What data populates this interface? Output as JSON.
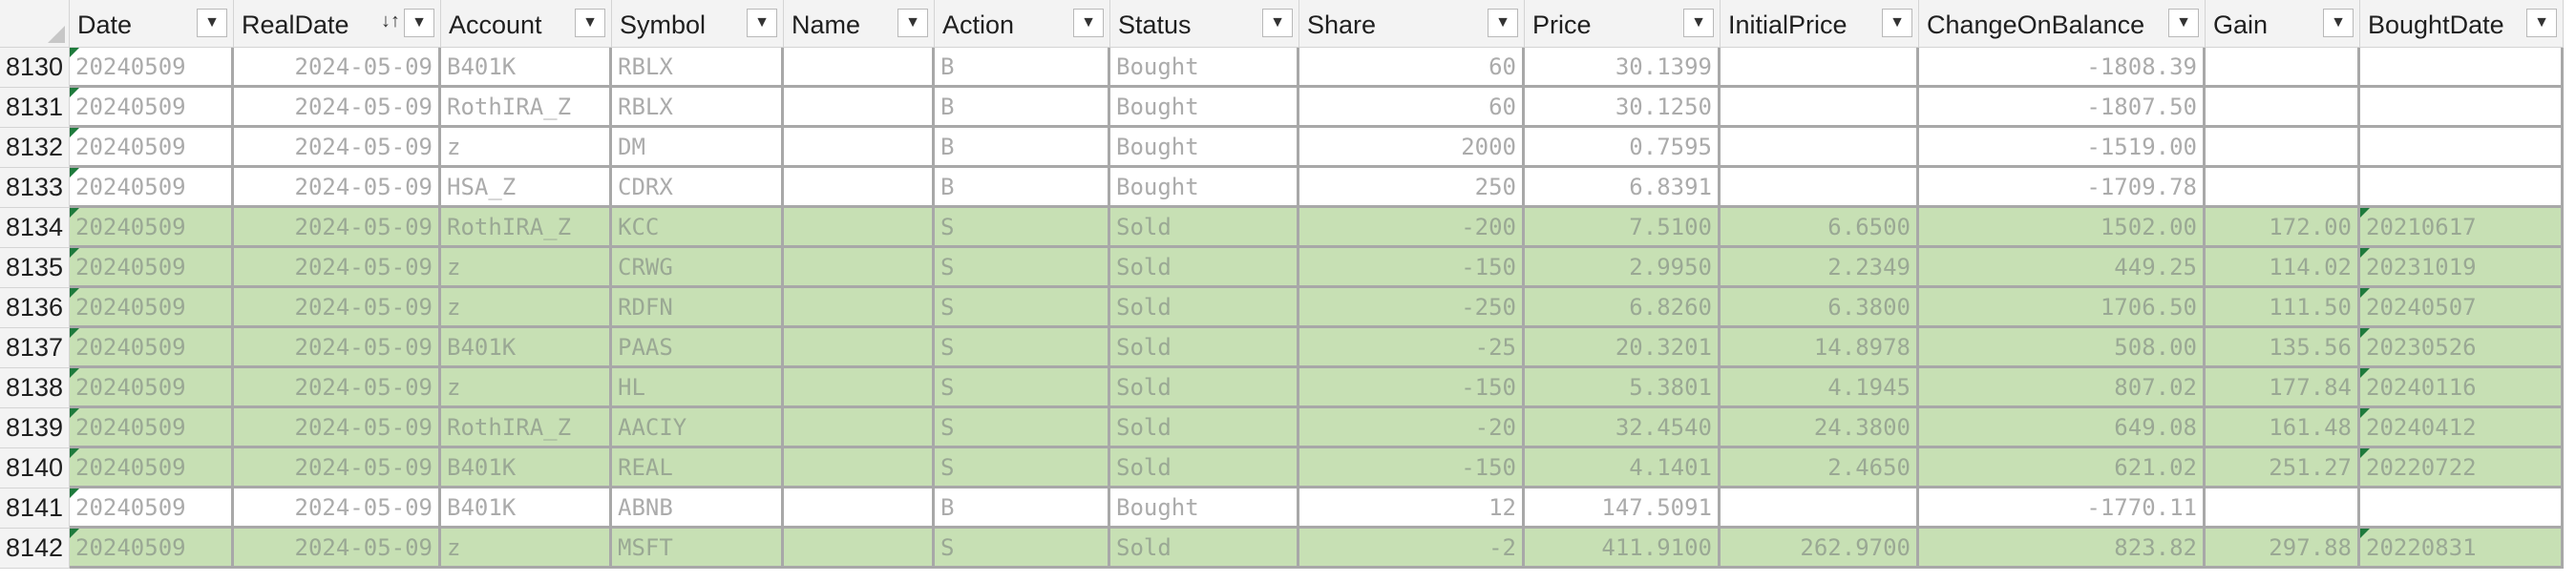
{
  "sheet": {
    "columns": [
      {
        "key": "date",
        "label": "Date",
        "align": "txt"
      },
      {
        "key": "real_date",
        "label": "RealDate",
        "align": "num",
        "sort": "↓↑"
      },
      {
        "key": "account",
        "label": "Account",
        "align": "txt"
      },
      {
        "key": "symbol",
        "label": "Symbol",
        "align": "txt"
      },
      {
        "key": "name",
        "label": "Name",
        "align": "txt"
      },
      {
        "key": "action",
        "label": "Action",
        "align": "txt"
      },
      {
        "key": "status",
        "label": "Status",
        "align": "txt"
      },
      {
        "key": "share",
        "label": "Share",
        "align": "num"
      },
      {
        "key": "price",
        "label": "Price",
        "align": "num"
      },
      {
        "key": "initial_price",
        "label": "InitialPrice",
        "align": "num"
      },
      {
        "key": "change_on_balance",
        "label": "ChangeOnBalance",
        "align": "num"
      },
      {
        "key": "gain",
        "label": "Gain",
        "align": "num"
      },
      {
        "key": "bought_date",
        "label": "BoughtDate",
        "align": "txt"
      }
    ],
    "filter_icon": "▼",
    "rows": [
      {
        "num": "8130",
        "kind": "bought",
        "date": "20240509",
        "real_date": "2024-05-09",
        "account": "B401K",
        "symbol": "RBLX",
        "name": "",
        "action": "B",
        "status": "Bought",
        "share": "60",
        "price": "30.1399",
        "initial_price": "",
        "change_on_balance": "-1808.39",
        "gain": "",
        "bought_date": ""
      },
      {
        "num": "8131",
        "kind": "bought",
        "date": "20240509",
        "real_date": "2024-05-09",
        "account": "RothIRA_Z",
        "symbol": "RBLX",
        "name": "",
        "action": "B",
        "status": "Bought",
        "share": "60",
        "price": "30.1250",
        "initial_price": "",
        "change_on_balance": "-1807.50",
        "gain": "",
        "bought_date": ""
      },
      {
        "num": "8132",
        "kind": "bought",
        "date": "20240509",
        "real_date": "2024-05-09",
        "account": "z",
        "symbol": "DM",
        "name": "",
        "action": "B",
        "status": "Bought",
        "share": "2000",
        "price": "0.7595",
        "initial_price": "",
        "change_on_balance": "-1519.00",
        "gain": "",
        "bought_date": ""
      },
      {
        "num": "8133",
        "kind": "bought",
        "date": "20240509",
        "real_date": "2024-05-09",
        "account": "HSA_Z",
        "symbol": "CDRX",
        "name": "",
        "action": "B",
        "status": "Bought",
        "share": "250",
        "price": "6.8391",
        "initial_price": "",
        "change_on_balance": "-1709.78",
        "gain": "",
        "bought_date": ""
      },
      {
        "num": "8134",
        "kind": "sold",
        "date": "20240509",
        "real_date": "2024-05-09",
        "account": "RothIRA_Z",
        "symbol": "KCC",
        "name": "",
        "action": "S",
        "status": "Sold",
        "share": "-200",
        "price": "7.5100",
        "initial_price": "6.6500",
        "change_on_balance": "1502.00",
        "gain": "172.00",
        "bought_date": "20210617"
      },
      {
        "num": "8135",
        "kind": "sold",
        "date": "20240509",
        "real_date": "2024-05-09",
        "account": "z",
        "symbol": "CRWG",
        "name": "",
        "action": "S",
        "status": "Sold",
        "share": "-150",
        "price": "2.9950",
        "initial_price": "2.2349",
        "change_on_balance": "449.25",
        "gain": "114.02",
        "bought_date": "20231019"
      },
      {
        "num": "8136",
        "kind": "sold",
        "date": "20240509",
        "real_date": "2024-05-09",
        "account": "z",
        "symbol": "RDFN",
        "name": "",
        "action": "S",
        "status": "Sold",
        "share": "-250",
        "price": "6.8260",
        "initial_price": "6.3800",
        "change_on_balance": "1706.50",
        "gain": "111.50",
        "bought_date": "20240507"
      },
      {
        "num": "8137",
        "kind": "sold",
        "date": "20240509",
        "real_date": "2024-05-09",
        "account": "B401K",
        "symbol": "PAAS",
        "name": "",
        "action": "S",
        "status": "Sold",
        "share": "-25",
        "price": "20.3201",
        "initial_price": "14.8978",
        "change_on_balance": "508.00",
        "gain": "135.56",
        "bought_date": "20230526"
      },
      {
        "num": "8138",
        "kind": "sold",
        "date": "20240509",
        "real_date": "2024-05-09",
        "account": "z",
        "symbol": "HL",
        "name": "",
        "action": "S",
        "status": "Sold",
        "share": "-150",
        "price": "5.3801",
        "initial_price": "4.1945",
        "change_on_balance": "807.02",
        "gain": "177.84",
        "bought_date": "20240116"
      },
      {
        "num": "8139",
        "kind": "sold",
        "date": "20240509",
        "real_date": "2024-05-09",
        "account": "RothIRA_Z",
        "symbol": "AACIY",
        "name": "",
        "action": "S",
        "status": "Sold",
        "share": "-20",
        "price": "32.4540",
        "initial_price": "24.3800",
        "change_on_balance": "649.08",
        "gain": "161.48",
        "bought_date": "20240412"
      },
      {
        "num": "8140",
        "kind": "sold",
        "date": "20240509",
        "real_date": "2024-05-09",
        "account": "B401K",
        "symbol": "REAL",
        "name": "",
        "action": "S",
        "status": "Sold",
        "share": "-150",
        "price": "4.1401",
        "initial_price": "2.4650",
        "change_on_balance": "621.02",
        "gain": "251.27",
        "bought_date": "20220722"
      },
      {
        "num": "8141",
        "kind": "bought",
        "date": "20240509",
        "real_date": "2024-05-09",
        "account": "B401K",
        "symbol": "ABNB",
        "name": "",
        "action": "B",
        "status": "Bought",
        "share": "12",
        "price": "147.5091",
        "initial_price": "",
        "change_on_balance": "-1770.11",
        "gain": "",
        "bought_date": ""
      },
      {
        "num": "8142",
        "kind": "sold",
        "date": "20240509",
        "real_date": "2024-05-09",
        "account": "z",
        "symbol": "MSFT",
        "name": "",
        "action": "S",
        "status": "Sold",
        "share": "-2",
        "price": "411.9100",
        "initial_price": "262.9700",
        "change_on_balance": "823.82",
        "gain": "297.88",
        "bought_date": "20220831"
      }
    ]
  }
}
